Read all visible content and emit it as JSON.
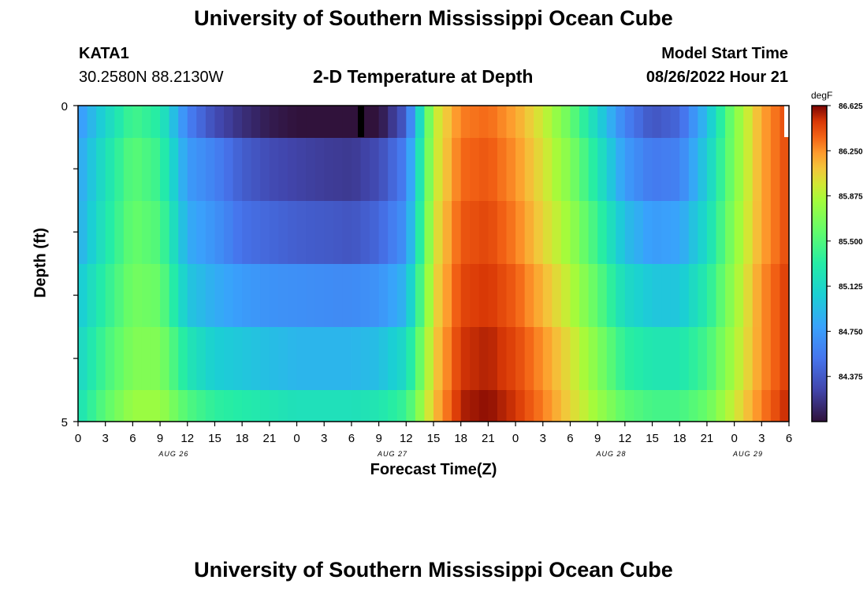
{
  "page_title": "University of Southern Mississippi Ocean Cube",
  "footer_title": "University of Southern Mississippi Ocean Cube",
  "station": {
    "id": "KATA1",
    "coords": "30.2580N  88.2130W"
  },
  "plot_title": "2-D Temperature at Depth",
  "model_start": {
    "label": "Model Start Time",
    "value": "08/26/2022 Hour 21"
  },
  "chart_data": {
    "type": "heatmap",
    "title": "2-D Temperature at Depth",
    "xlabel": "Forecast Time(Z)",
    "ylabel": "Depth (ft)",
    "y_ticks": [
      "0",
      "5"
    ],
    "y_range": [
      0,
      5
    ],
    "x_tick_labels": [
      "0",
      "3",
      "6",
      "9",
      "12",
      "15",
      "18",
      "21",
      "0",
      "3",
      "6",
      "9",
      "12",
      "15",
      "18",
      "21",
      "0",
      "3",
      "6",
      "9",
      "12",
      "15",
      "18",
      "21",
      "0",
      "3",
      "6"
    ],
    "date_labels": [
      {
        "label": "AUG 26",
        "hour": 10.5
      },
      {
        "label": "AUG 27",
        "hour": 34.5
      },
      {
        "label": "AUG 28",
        "hour": 58.5
      },
      {
        "label": "AUG 29",
        "hour": 73.5
      }
    ],
    "x_range_hours": [
      0,
      78
    ],
    "colorbar": {
      "unit": "degF",
      "min": 84.0,
      "max": 86.625,
      "tick_labels": [
        "86.625",
        "86.250",
        "85.875",
        "85.500",
        "85.125",
        "84.750",
        "84.375"
      ],
      "tick_values": [
        86.625,
        86.25,
        85.875,
        85.5,
        85.125,
        84.75,
        84.375
      ]
    },
    "depth_layers": [
      "0-0.5 ft",
      "0.5-1.5 ft",
      "1.5-2.5 ft",
      "2.5-3.5 ft",
      "3.5-4.5 ft",
      "4.5-5 ft"
    ],
    "time_anchor_hours": [
      0,
      3,
      6,
      9,
      12,
      15,
      18,
      21,
      24,
      27,
      30,
      33,
      36,
      39,
      42,
      45,
      48,
      51,
      54,
      57,
      60,
      63,
      66,
      69,
      72,
      75,
      78
    ],
    "temperature_anchors_degF": [
      [
        84.72,
        85.1,
        85.45,
        85.3,
        84.6,
        84.3,
        84.15,
        84.05,
        84.0,
        83.95,
        83.9,
        84.0,
        84.4,
        85.9,
        86.3,
        86.35,
        86.2,
        85.95,
        85.6,
        85.1,
        84.6,
        84.35,
        84.45,
        84.95,
        85.7,
        86.2,
        86.45
      ],
      [
        84.8,
        85.2,
        85.55,
        85.4,
        84.75,
        84.6,
        84.4,
        84.3,
        84.25,
        84.22,
        84.2,
        84.3,
        84.6,
        85.9,
        86.35,
        86.4,
        86.25,
        86.0,
        85.7,
        85.25,
        84.75,
        84.55,
        84.6,
        85.05,
        85.7,
        86.2,
        86.45
      ],
      [
        84.85,
        85.25,
        85.6,
        85.5,
        84.85,
        84.7,
        84.5,
        84.45,
        84.4,
        84.38,
        84.35,
        84.45,
        84.7,
        85.95,
        86.4,
        86.45,
        86.3,
        86.05,
        85.8,
        85.4,
        84.95,
        84.75,
        84.8,
        85.15,
        85.75,
        86.2,
        86.45
      ],
      [
        85.0,
        85.35,
        85.65,
        85.6,
        85.0,
        84.85,
        84.75,
        84.7,
        84.68,
        84.66,
        84.65,
        84.7,
        84.9,
        86.0,
        86.45,
        86.5,
        86.38,
        86.15,
        85.9,
        85.55,
        85.15,
        85.0,
        85.0,
        85.3,
        85.8,
        86.25,
        86.5
      ],
      [
        85.1,
        85.45,
        85.7,
        85.7,
        85.25,
        85.05,
        85.0,
        84.95,
        84.9,
        84.9,
        84.9,
        84.95,
        85.15,
        86.05,
        86.5,
        86.55,
        86.45,
        86.25,
        86.0,
        85.7,
        85.35,
        85.25,
        85.25,
        85.45,
        85.85,
        86.25,
        86.5
      ],
      [
        85.2,
        85.55,
        85.8,
        85.8,
        85.5,
        85.35,
        85.3,
        85.25,
        85.2,
        85.2,
        85.2,
        85.25,
        85.4,
        86.1,
        86.55,
        86.6,
        86.5,
        86.3,
        86.05,
        85.8,
        85.55,
        85.45,
        85.45,
        85.6,
        85.95,
        86.3,
        86.55
      ]
    ]
  }
}
